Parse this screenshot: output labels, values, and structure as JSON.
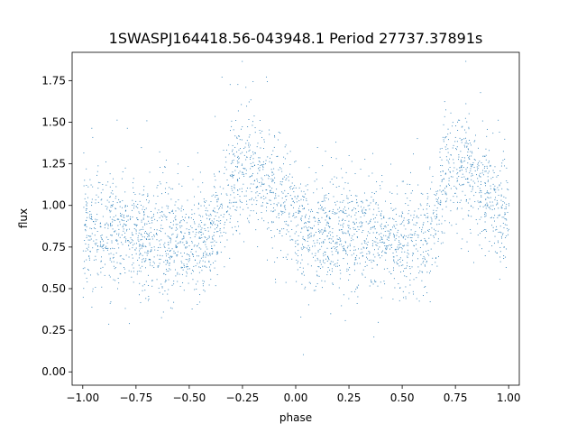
{
  "chart_data": {
    "type": "scatter",
    "title": "1SWASPJ164418.56-043948.1 Period 27737.37891s",
    "xlabel": "phase",
    "ylabel": "flux",
    "xlim": [
      -1.05,
      1.05
    ],
    "ylim": [
      -0.08,
      1.92
    ],
    "xticks": [
      -1.0,
      -0.75,
      -0.5,
      -0.25,
      0.0,
      0.25,
      0.5,
      0.75,
      1.0
    ],
    "xtick_labels": [
      "−1.00",
      "−0.75",
      "−0.50",
      "−0.25",
      "0.00",
      "0.25",
      "0.50",
      "0.75",
      "1.00"
    ],
    "yticks": [
      0.0,
      0.25,
      0.5,
      0.75,
      1.0,
      1.25,
      1.5,
      1.75
    ],
    "ytick_labels": [
      "0.00",
      "0.25",
      "0.50",
      "0.75",
      "1.00",
      "1.25",
      "1.50",
      "1.75"
    ],
    "grid": false,
    "marker_color": "#1f77b4",
    "light_curve_profile": {
      "phase": [
        0.0,
        0.1,
        0.2,
        0.3,
        0.4,
        0.5,
        0.6,
        0.65,
        0.7,
        0.75,
        0.8,
        0.85,
        0.9,
        0.95,
        1.0
      ],
      "flux": [
        0.86,
        0.86,
        0.84,
        0.8,
        0.78,
        0.77,
        0.8,
        0.95,
        1.18,
        1.25,
        1.22,
        1.15,
        1.08,
        1.0,
        0.94
      ]
    }
  }
}
